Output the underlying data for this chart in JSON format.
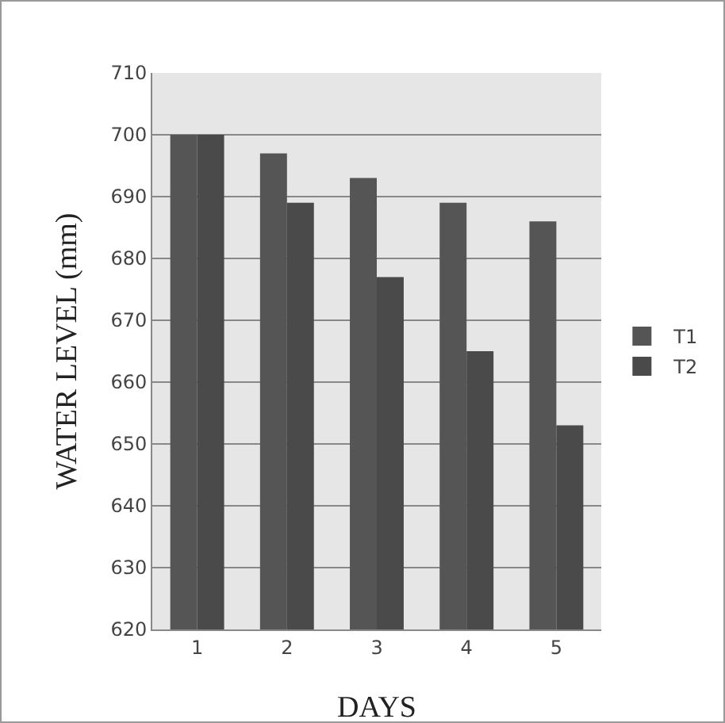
{
  "chart_data": {
    "type": "bar",
    "xlabel": "DAYS",
    "ylabel": "WATER LEVEL (mm)",
    "categories": [
      "1",
      "2",
      "3",
      "4",
      "5"
    ],
    "series": [
      {
        "name": "T1",
        "color": "#555555",
        "values": [
          700,
          697,
          693,
          689,
          686
        ]
      },
      {
        "name": "T2",
        "color": "#4a4a4a",
        "values": [
          700,
          689,
          677,
          665,
          653
        ]
      }
    ],
    "ylim": [
      620,
      710
    ],
    "yticks": [
      620,
      630,
      640,
      650,
      660,
      670,
      680,
      690,
      700,
      710
    ],
    "grid": "y",
    "legend": "right"
  }
}
